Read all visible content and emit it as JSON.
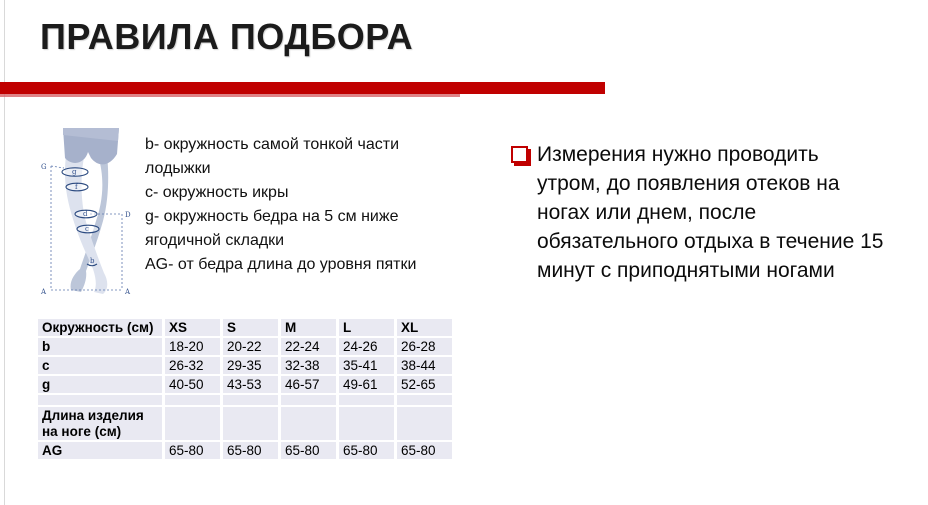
{
  "title": "ПРАВИЛА ПОДБОРА",
  "colors": {
    "accent_red": "#C00000",
    "accent_red_light": "#D4595F",
    "table_band": "#E9E9F2",
    "diagram_navy": "#2B4A80",
    "leg_light": "#DDE2EE",
    "leg_mid": "#BCC6D9",
    "panty_dark": "#A6B1CB"
  },
  "diagram": {
    "corner_labels": {
      "top_left": "G",
      "right": "D",
      "bottom_left": "A",
      "bottom_right": "A"
    },
    "band_labels": [
      "g",
      "f",
      "d",
      "c",
      "b"
    ]
  },
  "legend": {
    "items": [
      "b- окружность самой тонкой части лодыжки",
      "c- окружность икры",
      "g- окружность бедра на 5 см ниже ягодичной складки",
      "AG- от бедра длина до уровня пятки"
    ]
  },
  "size_table": {
    "headers": [
      "Окружность (см)",
      "XS",
      "S",
      "M",
      "L",
      "XL"
    ],
    "rows": [
      {
        "label": "b",
        "values": [
          "18-20",
          "20-22",
          "22-24",
          "24-26",
          "26-28"
        ]
      },
      {
        "label": "c",
        "values": [
          "26-32",
          "29-35",
          "32-38",
          "35-41",
          "38-44"
        ]
      },
      {
        "label": "g",
        "values": [
          "40-50",
          "43-53",
          "46-57",
          "49-61",
          "52-65"
        ]
      },
      {
        "label": "",
        "values": [
          "",
          "",
          "",
          "",
          ""
        ]
      },
      {
        "label": "Длина изделия на ноге (см)",
        "values": [
          "",
          "",
          "",
          "",
          ""
        ]
      },
      {
        "label": "AG",
        "values": [
          "65-80",
          "65-80",
          "65-80",
          "65-80",
          "65-80"
        ]
      }
    ]
  },
  "note": {
    "lines": [
      "Измерения нужно проводить",
      "утром, до появления отеков на",
      "ногах или днем, после",
      "обязательного отдыха в течение 15",
      "минут с приподнятыми ногами"
    ]
  }
}
